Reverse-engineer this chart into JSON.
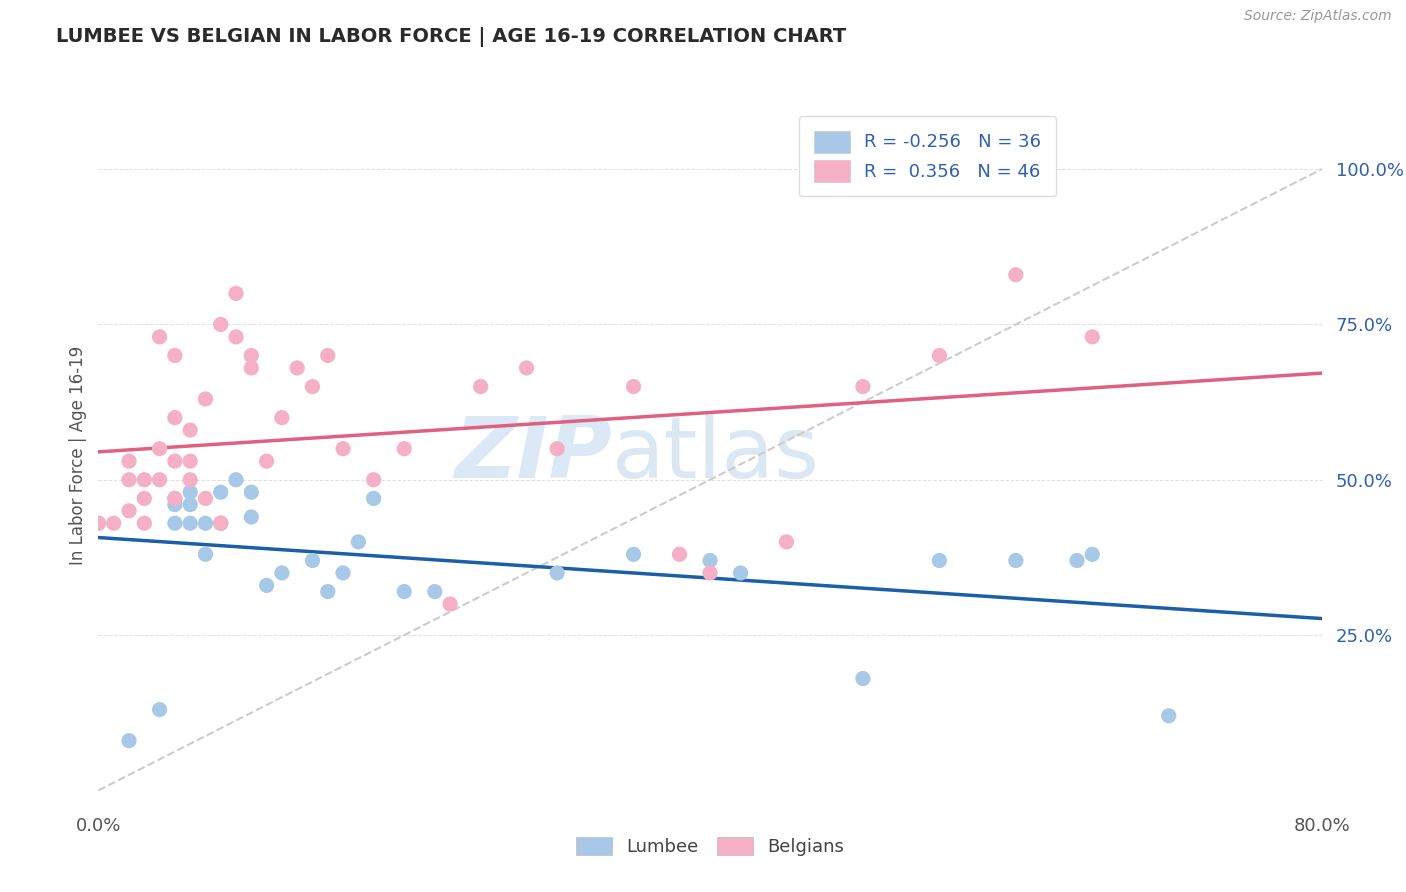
{
  "title": "LUMBEE VS BELGIAN IN LABOR FORCE | AGE 16-19 CORRELATION CHART",
  "source_text": "Source: ZipAtlas.com",
  "ylabel": "In Labor Force | Age 16-19",
  "xlim": [
    0.0,
    0.8
  ],
  "ylim": [
    -0.02,
    1.1
  ],
  "lumbee_R": "-0.256",
  "lumbee_N": "36",
  "belgian_R": "0.356",
  "belgian_N": "46",
  "lumbee_scatter_color": "#a8c8e8",
  "belgian_scatter_color": "#f5b0c5",
  "lumbee_line_color": "#1a5fa8",
  "belgian_line_color": "#e06080",
  "diag_color": "#cccccc",
  "legend_color": "#3060b0",
  "ytick_color": "#3060b0",
  "watermark_zip_color": "#c8ddf0",
  "watermark_atlas_color": "#b0cce8",
  "bg_color": "#ffffff",
  "grid_color": "#e0e0e0",
  "lumbee_x": [
    0.0,
    0.02,
    0.04,
    0.05,
    0.05,
    0.05,
    0.06,
    0.06,
    0.06,
    0.07,
    0.07,
    0.08,
    0.08,
    0.08,
    0.09,
    0.1,
    0.1,
    0.11,
    0.12,
    0.14,
    0.15,
    0.16,
    0.17,
    0.18,
    0.2,
    0.22,
    0.3,
    0.35,
    0.4,
    0.42,
    0.5,
    0.55,
    0.6,
    0.64,
    0.65,
    0.7
  ],
  "lumbee_y": [
    0.43,
    0.08,
    0.13,
    0.43,
    0.46,
    0.47,
    0.43,
    0.46,
    0.48,
    0.38,
    0.43,
    0.43,
    0.43,
    0.48,
    0.5,
    0.44,
    0.48,
    0.33,
    0.35,
    0.37,
    0.32,
    0.35,
    0.4,
    0.47,
    0.32,
    0.32,
    0.35,
    0.38,
    0.37,
    0.35,
    0.18,
    0.37,
    0.37,
    0.37,
    0.38,
    0.12
  ],
  "belgian_x": [
    0.0,
    0.01,
    0.02,
    0.02,
    0.02,
    0.03,
    0.03,
    0.03,
    0.04,
    0.04,
    0.04,
    0.05,
    0.05,
    0.05,
    0.05,
    0.06,
    0.06,
    0.06,
    0.07,
    0.07,
    0.08,
    0.08,
    0.09,
    0.09,
    0.1,
    0.1,
    0.11,
    0.12,
    0.13,
    0.14,
    0.15,
    0.16,
    0.18,
    0.2,
    0.23,
    0.25,
    0.28,
    0.3,
    0.35,
    0.38,
    0.4,
    0.45,
    0.5,
    0.55,
    0.6,
    0.65
  ],
  "belgian_y": [
    0.43,
    0.43,
    0.45,
    0.5,
    0.53,
    0.43,
    0.47,
    0.5,
    0.5,
    0.55,
    0.73,
    0.47,
    0.53,
    0.6,
    0.7,
    0.5,
    0.53,
    0.58,
    0.47,
    0.63,
    0.43,
    0.75,
    0.73,
    0.8,
    0.68,
    0.7,
    0.53,
    0.6,
    0.68,
    0.65,
    0.7,
    0.55,
    0.5,
    0.55,
    0.3,
    0.65,
    0.68,
    0.55,
    0.65,
    0.38,
    0.35,
    0.4,
    0.65,
    0.7,
    0.83,
    0.73
  ]
}
